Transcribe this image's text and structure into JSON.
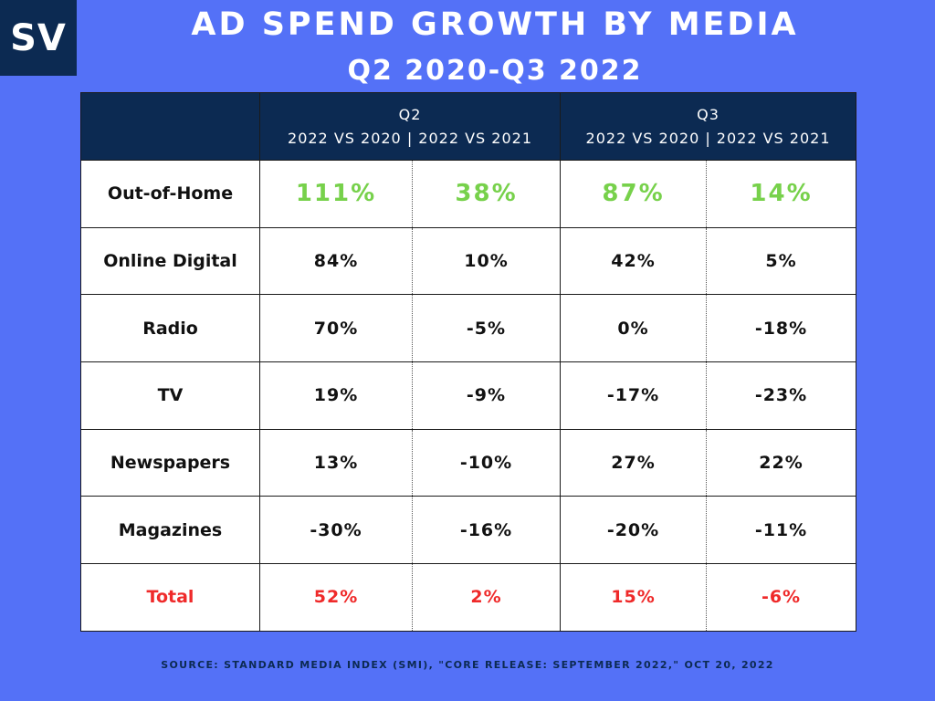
{
  "logo": "SV",
  "title": "AD SPEND GROWTH BY MEDIA",
  "subtitle": "Q2 2020-Q3 2022",
  "chart_data": {
    "type": "table",
    "header": [
      {
        "quarter": "Q2",
        "comparisons": "2022 VS 2020 | 2022 VS 2021"
      },
      {
        "quarter": "Q3",
        "comparisons": "2022 VS 2020 | 2022 VS 2021"
      }
    ],
    "rows": [
      {
        "label": "Out-of-Home",
        "values": [
          "111%",
          "38%",
          "87%",
          "14%"
        ]
      },
      {
        "label": "Online Digital",
        "values": [
          "84%",
          "10%",
          "42%",
          "5%"
        ]
      },
      {
        "label": "Radio",
        "values": [
          "70%",
          "-5%",
          "0%",
          "-18%"
        ]
      },
      {
        "label": "TV",
        "values": [
          "19%",
          "-9%",
          "-17%",
          "-23%"
        ]
      },
      {
        "label": "Newspapers",
        "values": [
          "13%",
          "-10%",
          "27%",
          "22%"
        ]
      },
      {
        "label": "Magazines",
        "values": [
          "-30%",
          "-16%",
          "-20%",
          "-11%"
        ]
      },
      {
        "label": "Total",
        "values": [
          "52%",
          "2%",
          "15%",
          "-6%"
        ]
      }
    ]
  },
  "colors": {
    "background": "#5471f7",
    "header": "#0c2a52",
    "highlight": "#77d14b",
    "total": "#ef2a2a"
  },
  "source": "SOURCE: STANDARD MEDIA INDEX (SMI), \"CORE RELEASE: SEPTEMBER 2022,\" OCT 20, 2022"
}
